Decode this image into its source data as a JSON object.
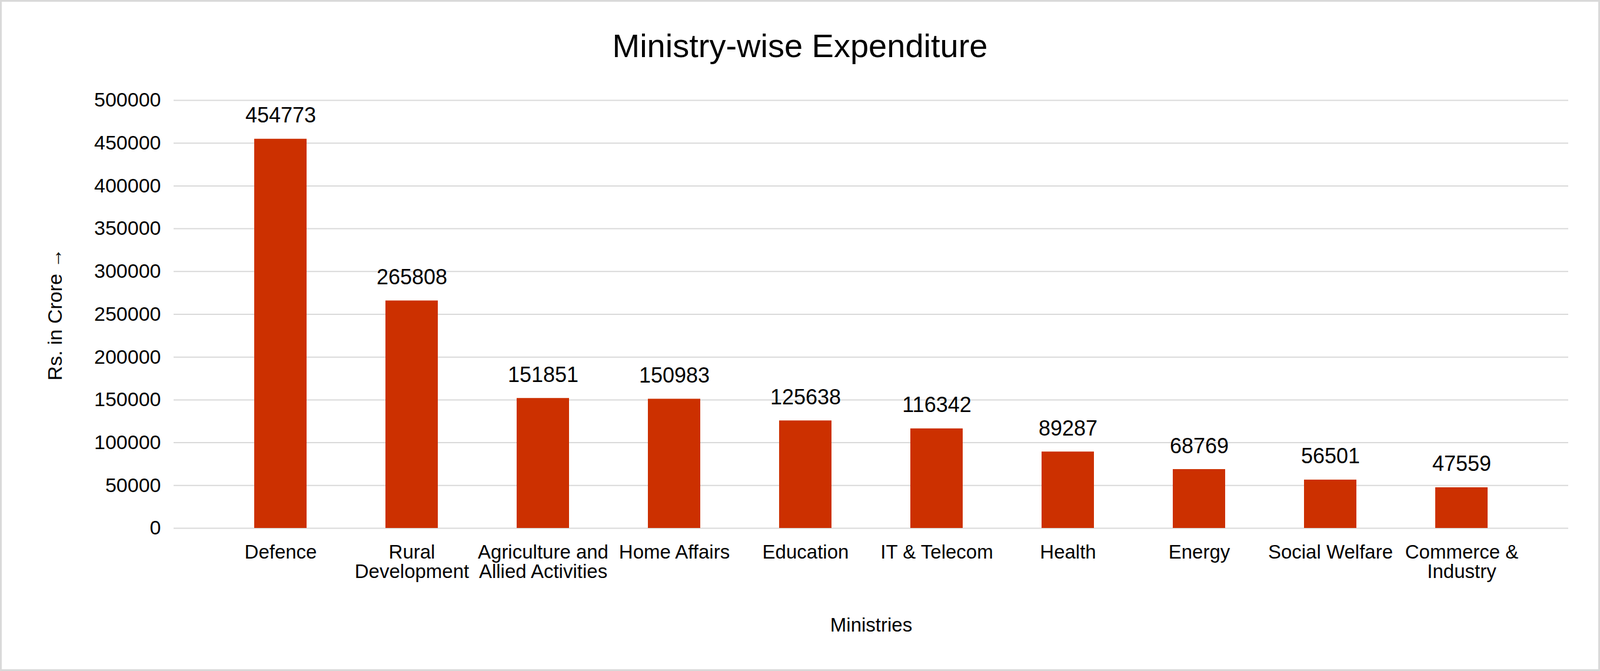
{
  "chart_data": {
    "type": "bar",
    "title": "Ministry-wise Expenditure",
    "x_label": "Ministries",
    "y_label": "Rs. in Crore",
    "categories": [
      "Defence",
      "Rural Development",
      "Agriculture and Allied Activities",
      "Home Affairs",
      "Education",
      "IT & Telecom",
      "Health",
      "Energy",
      "Social Welfare",
      "Commerce & Industry"
    ],
    "values": [
      454773,
      265808,
      151851,
      150983,
      125638,
      116342,
      89287,
      68769,
      56501,
      47559
    ],
    "color": "#cc3000",
    "ylim": [
      0,
      500000
    ],
    "yticks": [
      0,
      50000,
      100000,
      150000,
      200000,
      250000,
      300000,
      350000,
      400000,
      450000,
      500000
    ],
    "grid": true,
    "data_labels": true
  }
}
